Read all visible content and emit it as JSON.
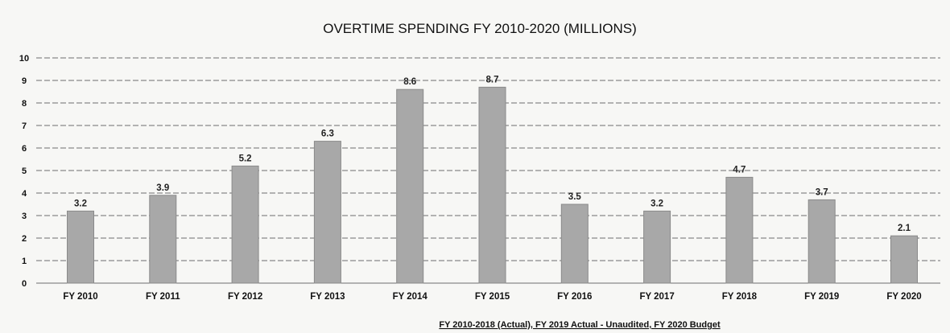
{
  "chart_data": {
    "type": "bar",
    "title": "OVERTIME SPENDING FY 2010-2020 (MILLIONS)",
    "footnote": "FY 2010-2018 (Actual), FY 2019 Actual - Unaudited, FY 2020 Budget",
    "categories": [
      "FY 2010",
      "FY 2011",
      "FY 2012",
      "FY 2013",
      "FY 2014",
      "FY 2015",
      "FY 2016",
      "FY 2017",
      "FY 2018",
      "FY 2019",
      "FY 2020"
    ],
    "values": [
      3.2,
      3.9,
      5.2,
      6.3,
      8.6,
      8.7,
      3.5,
      3.2,
      4.7,
      3.7,
      2.1
    ],
    "data_labels": [
      "3.2",
      "3.9",
      "5.2",
      "6.3",
      "8.6",
      "8.7",
      "3.5",
      "3.2",
      "4.7",
      "3.7",
      "2.1"
    ],
    "ylim": [
      0,
      10
    ],
    "yticks": [
      0,
      1,
      2,
      3,
      4,
      5,
      6,
      7,
      8,
      9,
      10
    ],
    "grid": true,
    "legend": "none",
    "bar_color": "#a8a8a8",
    "bar_edge_color": "#8a8a8a",
    "grid_color": "#6e6e6e"
  }
}
